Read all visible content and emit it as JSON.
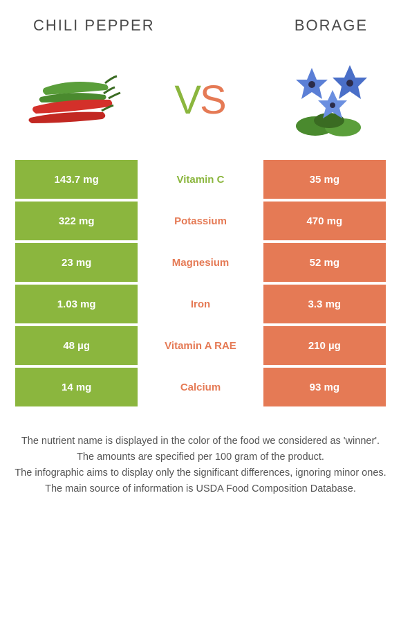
{
  "header": {
    "left_title": "CHILI PEPPER",
    "right_title": "BORAGE"
  },
  "vs": {
    "v": "V",
    "s": "S"
  },
  "colors": {
    "left_bg": "#8bb63e",
    "right_bg": "#e57a55",
    "left_text": "#8bb63e",
    "right_text": "#e57a55",
    "row_gap": "#ffffff",
    "page_bg": "#ffffff",
    "footnote_text": "#555555",
    "header_text": "#4a4a4a"
  },
  "table": {
    "rows": [
      {
        "left": "143.7 mg",
        "mid": "Vitamin C",
        "right": "35 mg",
        "winner": "left"
      },
      {
        "left": "322 mg",
        "mid": "Potassium",
        "right": "470 mg",
        "winner": "right"
      },
      {
        "left": "23 mg",
        "mid": "Magnesium",
        "right": "52 mg",
        "winner": "right"
      },
      {
        "left": "1.03 mg",
        "mid": "Iron",
        "right": "3.3 mg",
        "winner": "right"
      },
      {
        "left": "48 µg",
        "mid": "Vitamin A RAE",
        "right": "210 µg",
        "winner": "right"
      },
      {
        "left": "14 mg",
        "mid": "Calcium",
        "right": "93 mg",
        "winner": "right"
      }
    ]
  },
  "footnotes": [
    "The nutrient name is displayed in the color of the food we considered as 'winner'.",
    "The amounts are specified per 100 gram of the product.",
    "The infographic aims to display only the significant differences, ignoring minor ones.",
    "The main source of information is USDA Food Composition Database."
  ],
  "icons": {
    "left": "chili-peppers-icon",
    "right": "borage-flower-icon"
  }
}
